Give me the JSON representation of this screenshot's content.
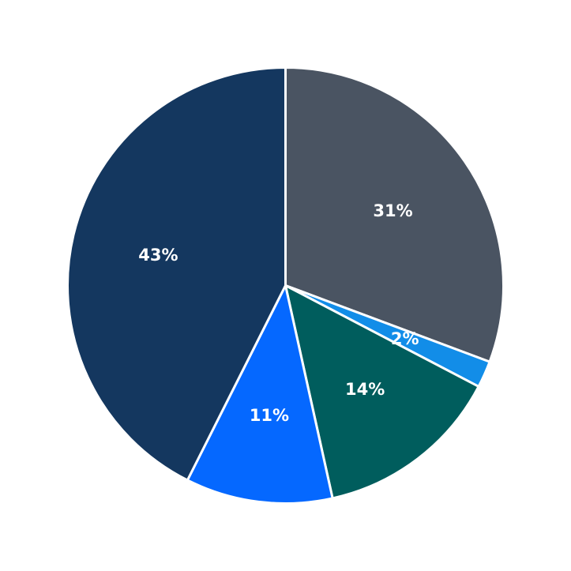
{
  "chart_data": {
    "type": "pie",
    "start_angle_deg": 90,
    "direction": "clockwise",
    "legend": "none",
    "slices": [
      {
        "value": 31,
        "label": "31%",
        "color": "#4a5462"
      },
      {
        "value": 2,
        "label": "2%",
        "color": "#128de8"
      },
      {
        "value": 14,
        "label": "14%",
        "color": "#005d5d"
      },
      {
        "value": 11,
        "label": "11%",
        "color": "#0568ff"
      },
      {
        "value": 43,
        "label": "43%",
        "color": "#14375f"
      }
    ]
  }
}
